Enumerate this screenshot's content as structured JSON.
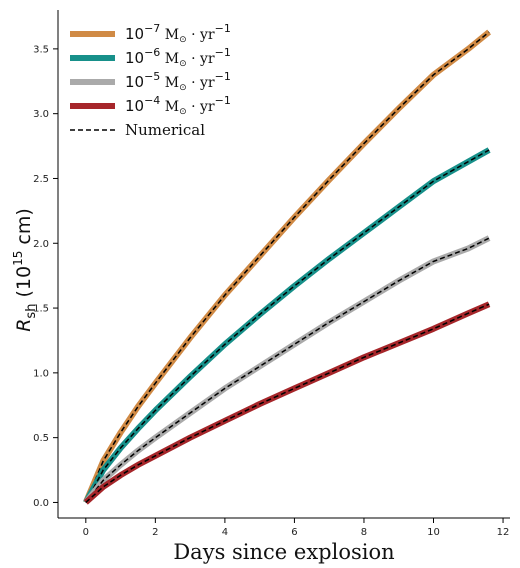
{
  "chart_data": {
    "type": "line",
    "title": "",
    "xlabel": "Days since explosion",
    "ylabel": {
      "main": "R",
      "sub": "sh",
      "unit_open": " (10",
      "unit_exp": "15",
      "unit_close": " cm)"
    },
    "xlim": [
      -0.8,
      12.2
    ],
    "ylim": [
      -0.12,
      3.8
    ],
    "xticks": [
      0,
      2,
      4,
      6,
      8,
      10,
      12
    ],
    "yticks": [
      0.0,
      0.5,
      1.0,
      1.5,
      2.0,
      2.5,
      3.0,
      3.5
    ],
    "xtick_labels": [
      "0",
      "2",
      "4",
      "6",
      "8",
      "10",
      "12"
    ],
    "ytick_labels": [
      "0.0",
      "0.5",
      "1.0",
      "1.5",
      "2.0",
      "2.5",
      "3.0",
      "3.5"
    ],
    "grid": false,
    "legend_position": "top-left",
    "series": [
      {
        "name": "10^-7 M⊙ · yr^-1",
        "label_base": "10",
        "label_exp": "−7",
        "label_unit": " M",
        "label_sun": "⊙",
        "label_rate": " · yr",
        "label_rate_exp": "−1",
        "color": "#d08a45",
        "x": [
          0,
          0.5,
          1,
          1.5,
          2,
          3,
          4,
          5,
          6,
          7,
          8,
          9,
          10,
          11,
          11.6
        ],
        "y": [
          0.0,
          0.32,
          0.54,
          0.74,
          0.92,
          1.27,
          1.6,
          1.9,
          2.2,
          2.49,
          2.77,
          3.04,
          3.3,
          3.5,
          3.63
        ]
      },
      {
        "name": "10^-6 M⊙ · yr^-1",
        "label_base": "10",
        "label_exp": "−6",
        "label_unit": " M",
        "label_sun": "⊙",
        "label_rate": " · yr",
        "label_rate_exp": "−1",
        "color": "#17908a",
        "x": [
          0,
          0.5,
          1,
          1.5,
          2,
          3,
          4,
          5,
          6,
          7,
          8,
          9,
          10,
          11,
          11.6
        ],
        "y": [
          0.0,
          0.25,
          0.42,
          0.57,
          0.71,
          0.97,
          1.22,
          1.45,
          1.67,
          1.88,
          2.08,
          2.28,
          2.48,
          2.63,
          2.72
        ]
      },
      {
        "name": "10^-5 M⊙ · yr^-1",
        "label_base": "10",
        "label_exp": "−5",
        "label_unit": " M",
        "label_sun": "⊙",
        "label_rate": " · yr",
        "label_rate_exp": "−1",
        "color": "#aaaaaa",
        "x": [
          0,
          0.5,
          1,
          1.5,
          2,
          3,
          4,
          5,
          6,
          7,
          8,
          9,
          10,
          11,
          11.6
        ],
        "y": [
          0.0,
          0.17,
          0.29,
          0.4,
          0.5,
          0.69,
          0.88,
          1.05,
          1.22,
          1.39,
          1.55,
          1.71,
          1.86,
          1.96,
          2.04
        ]
      },
      {
        "name": "10^-4 M⊙ · yr^-1",
        "label_base": "10",
        "label_exp": "−4",
        "label_unit": " M",
        "label_sun": "⊙",
        "label_rate": " · yr",
        "label_rate_exp": "−1",
        "color": "#a6262a",
        "x": [
          0,
          0.5,
          1,
          1.5,
          2,
          3,
          4,
          5,
          6,
          7,
          8,
          9,
          10,
          11,
          11.6
        ],
        "y": [
          0.0,
          0.12,
          0.21,
          0.29,
          0.36,
          0.5,
          0.63,
          0.76,
          0.88,
          1.0,
          1.12,
          1.23,
          1.34,
          1.46,
          1.53
        ]
      }
    ],
    "numerical_legend": "Numerical"
  }
}
